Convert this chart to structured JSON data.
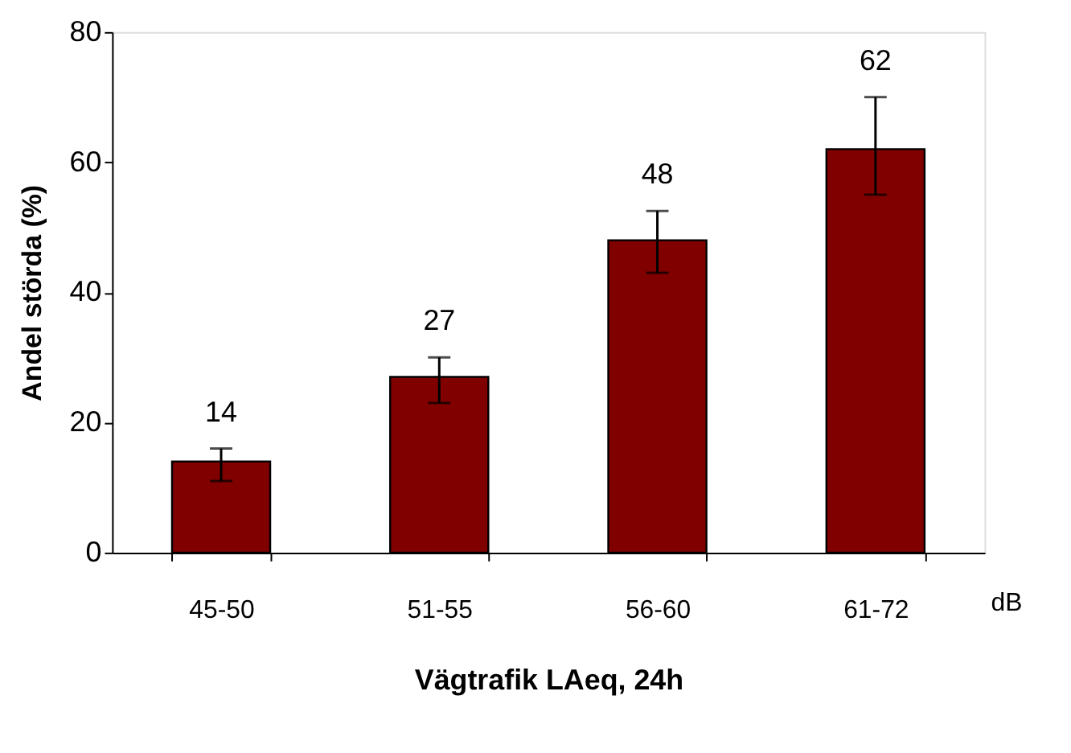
{
  "chart_data": {
    "type": "bar",
    "xlabel": "Vägtrafik LAeq, 24h",
    "ylabel": "Andel störda (%)",
    "categories": [
      "45-50",
      "51-55",
      "56-60",
      "61-72"
    ],
    "values": [
      14,
      27,
      48,
      62
    ],
    "errors": [
      [
        11,
        16
      ],
      [
        23,
        30
      ],
      [
        43,
        52.5
      ],
      [
        55,
        70
      ]
    ],
    "color": "#800000",
    "data_labels": true,
    "ylim": [
      0,
      80
    ],
    "yticks": [
      0,
      20,
      40,
      60,
      80
    ],
    "grid": false,
    "annotations": [
      "dB"
    ]
  }
}
